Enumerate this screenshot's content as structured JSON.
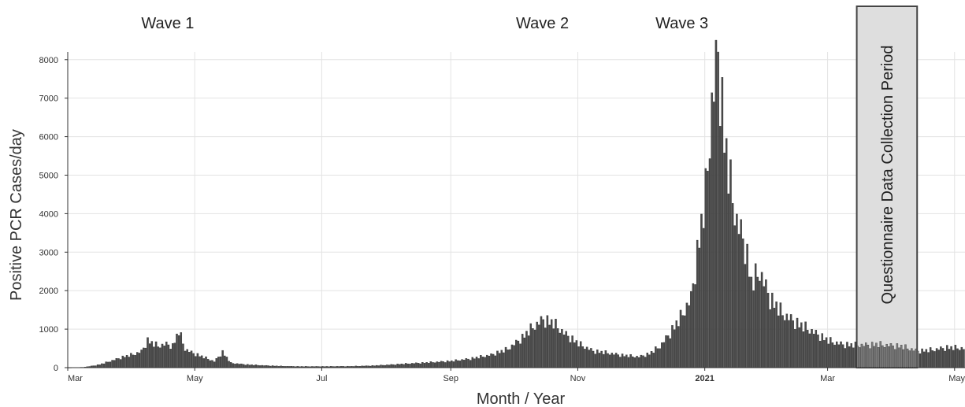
{
  "chart_data": {
    "type": "bar",
    "xlabel": "Month / Year",
    "ylabel": "Positive PCR Cases/day",
    "ylim": [
      0,
      8200
    ],
    "yticks": [
      0,
      1000,
      2000,
      3000,
      4000,
      5000,
      6000,
      7000,
      8000
    ],
    "xlim": [
      "2020-03-01",
      "2021-05-06"
    ],
    "xticks": [
      {
        "label": "Mar",
        "date": "2020-03-01",
        "bold": false
      },
      {
        "label": "May",
        "date": "2020-05-01",
        "bold": false
      },
      {
        "label": "Jul",
        "date": "2020-07-01",
        "bold": false
      },
      {
        "label": "Sep",
        "date": "2020-09-01",
        "bold": false
      },
      {
        "label": "Nov",
        "date": "2020-11-01",
        "bold": false
      },
      {
        "label": "2021",
        "date": "2021-01-01",
        "bold": true
      },
      {
        "label": "Mar",
        "date": "2021-03-01",
        "bold": false
      },
      {
        "label": "May",
        "date": "2021-05-01",
        "bold": false
      }
    ],
    "grid": true,
    "bar_color": "#4a4a4a",
    "annotations": [
      {
        "text": "Wave 1",
        "date": "2020-04-18"
      },
      {
        "text": "Wave 2",
        "date": "2020-10-15"
      },
      {
        "text": "Wave 3",
        "date": "2020-12-21"
      }
    ],
    "shaded_period": {
      "label": "Questionnaire Data Collection Period",
      "start": "2021-03-15",
      "end": "2021-04-13",
      "fill": "#dedede"
    },
    "series": [
      {
        "points": [
          [
            "2020-03-01",
            0
          ],
          [
            "2020-03-08",
            10
          ],
          [
            "2020-03-12",
            40
          ],
          [
            "2020-03-16",
            80
          ],
          [
            "2020-03-20",
            150
          ],
          [
            "2020-03-24",
            220
          ],
          [
            "2020-03-28",
            290
          ],
          [
            "2020-04-01",
            340
          ],
          [
            "2020-04-05",
            420
          ],
          [
            "2020-04-08",
            700
          ],
          [
            "2020-04-10",
            640
          ],
          [
            "2020-04-13",
            560
          ],
          [
            "2020-04-17",
            610
          ],
          [
            "2020-04-20",
            560
          ],
          [
            "2020-04-23",
            950
          ],
          [
            "2020-04-26",
            480
          ],
          [
            "2020-04-30",
            370
          ],
          [
            "2020-05-05",
            270
          ],
          [
            "2020-05-10",
            160
          ],
          [
            "2020-05-14",
            400
          ],
          [
            "2020-05-18",
            120
          ],
          [
            "2020-05-25",
            80
          ],
          [
            "2020-06-01",
            60
          ],
          [
            "2020-06-10",
            40
          ],
          [
            "2020-06-20",
            30
          ],
          [
            "2020-07-01",
            30
          ],
          [
            "2020-07-15",
            35
          ],
          [
            "2020-07-25",
            50
          ],
          [
            "2020-08-01",
            70
          ],
          [
            "2020-08-10",
            100
          ],
          [
            "2020-08-20",
            130
          ],
          [
            "2020-09-01",
            170
          ],
          [
            "2020-09-10",
            230
          ],
          [
            "2020-09-20",
            330
          ],
          [
            "2020-09-28",
            480
          ],
          [
            "2020-10-05",
            780
          ],
          [
            "2020-10-10",
            1050
          ],
          [
            "2020-10-15",
            1250
          ],
          [
            "2020-10-20",
            1150
          ],
          [
            "2020-10-25",
            900
          ],
          [
            "2020-11-01",
            620
          ],
          [
            "2020-11-08",
            430
          ],
          [
            "2020-11-15",
            380
          ],
          [
            "2020-11-22",
            320
          ],
          [
            "2020-11-30",
            280
          ],
          [
            "2020-12-05",
            360
          ],
          [
            "2020-12-10",
            550
          ],
          [
            "2020-12-15",
            900
          ],
          [
            "2020-12-20",
            1300
          ],
          [
            "2020-12-25",
            1800
          ],
          [
            "2021-01-01",
            4500
          ],
          [
            "2021-01-04",
            6800
          ],
          [
            "2021-01-07",
            8200
          ],
          [
            "2021-01-10",
            6000
          ],
          [
            "2021-01-13",
            4700
          ],
          [
            "2021-01-16",
            3800
          ],
          [
            "2021-01-20",
            3200
          ],
          [
            "2021-01-23",
            2200
          ],
          [
            "2021-01-27",
            2500
          ],
          [
            "2021-02-01",
            1800
          ],
          [
            "2021-02-07",
            1400
          ],
          [
            "2021-02-14",
            1150
          ],
          [
            "2021-02-21",
            950
          ],
          [
            "2021-03-01",
            700
          ],
          [
            "2021-03-08",
            600
          ],
          [
            "2021-03-15",
            580
          ],
          [
            "2021-03-25",
            600
          ],
          [
            "2021-04-05",
            550
          ],
          [
            "2021-04-13",
            430
          ],
          [
            "2021-04-20",
            460
          ],
          [
            "2021-04-27",
            520
          ],
          [
            "2021-05-06",
            500
          ]
        ]
      }
    ]
  }
}
